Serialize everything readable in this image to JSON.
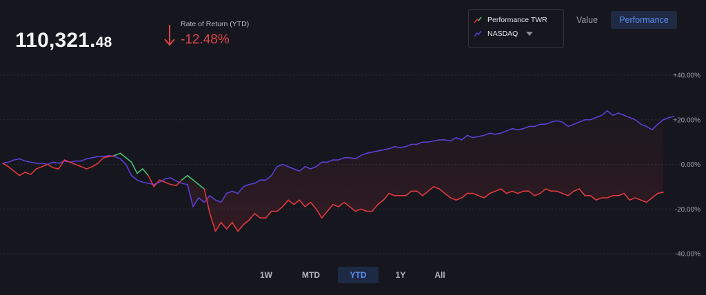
{
  "portfolio": {
    "value_main": "110,321.",
    "value_cents": "48"
  },
  "ror": {
    "label": "Rate of Return (YTD)",
    "value": "-12.48%",
    "direction": "down",
    "color": "#e0464a"
  },
  "legend": {
    "items": [
      {
        "label": "Performance TWR",
        "icon": "up-trend-icon"
      },
      {
        "label": "NASDAQ",
        "icon": "up-trend-icon",
        "dropdown": true
      }
    ]
  },
  "view_toggle": {
    "value_label": "Value",
    "performance_label": "Performance",
    "active": "Performance"
  },
  "ranges": {
    "items": [
      "1W",
      "MTD",
      "YTD",
      "1Y",
      "All"
    ],
    "active": "YTD"
  },
  "colors": {
    "performance": "#e0393e",
    "performance_up": "#3ec46d",
    "nasdaq": "#5b3fd6",
    "accent": "#5a8ff0",
    "background": "#16161e"
  },
  "chart_data": {
    "type": "line",
    "ylim": [
      -40,
      40
    ],
    "yticks": [
      40,
      20,
      0,
      -20,
      -40
    ],
    "ytick_labels": [
      "+40.00%",
      "+20.00%",
      "0.00%",
      "-20.00%",
      "-40.00%"
    ],
    "grid": true,
    "y_axis_position": "right",
    "series": [
      {
        "name": "Performance TWR",
        "color": "#e0393e",
        "values": [
          0.5,
          -1,
          -3,
          -5,
          -3.5,
          -4.5,
          -2,
          -1,
          0,
          -1.5,
          -2,
          2,
          1,
          0,
          -1,
          -2,
          -1,
          0.5,
          3,
          3.5,
          4,
          5,
          3,
          1,
          -4,
          -2,
          -5,
          -10,
          -7,
          -8,
          -9,
          -9.5,
          -7,
          -5,
          -7,
          -9,
          -11,
          -22,
          -30,
          -26,
          -29,
          -26,
          -30,
          -27,
          -25,
          -22,
          -24,
          -24,
          -21,
          -21,
          -19,
          -16,
          -18,
          -16,
          -19,
          -17,
          -20,
          -24,
          -21,
          -18,
          -19,
          -17,
          -19,
          -21,
          -20,
          -21,
          -21,
          -18,
          -16,
          -13,
          -14,
          -14,
          -14,
          -12,
          -12,
          -14,
          -12,
          -10,
          -11,
          -13,
          -15,
          -16,
          -15,
          -13,
          -13,
          -14,
          -15,
          -13,
          -12,
          -11,
          -13,
          -12,
          -13,
          -12,
          -12,
          -14,
          -13,
          -11,
          -12,
          -12,
          -13,
          -14,
          -12,
          -11,
          -14,
          -14,
          -16,
          -15,
          -15,
          -14,
          -14,
          -13,
          -16,
          -15,
          -16,
          -17,
          -15,
          -13,
          -12.5
        ]
      },
      {
        "name": "NASDAQ",
        "color": "#5b3fd6",
        "values": [
          0.5,
          1,
          2,
          2.5,
          1.5,
          1,
          0.5,
          0.5,
          0,
          1,
          0.5,
          1.5,
          1,
          1.5,
          1.5,
          2.5,
          3,
          3.5,
          3.5,
          4,
          3.5,
          2.5,
          0,
          -5,
          -7,
          -8,
          -8.5,
          -9,
          -8,
          -6.5,
          -6,
          -7.5,
          -8.5,
          -9,
          -19,
          -15,
          -17,
          -14,
          -16,
          -17,
          -13,
          -12,
          -13,
          -10,
          -9,
          -8.5,
          -7,
          -7,
          -5,
          -1,
          0,
          -1,
          -2,
          -3,
          -1,
          -2,
          -1,
          1,
          1,
          2,
          2,
          3,
          3,
          2.5,
          4,
          5,
          5.5,
          6,
          6.5,
          7,
          8,
          7.5,
          8,
          9,
          9,
          10,
          10,
          10.5,
          11,
          11,
          10.5,
          12,
          11,
          13,
          12,
          12.5,
          13,
          14,
          13.5,
          14,
          15,
          16,
          15.5,
          16,
          17,
          17,
          18,
          18,
          19,
          19.5,
          19,
          17,
          18,
          19,
          20,
          20,
          21,
          22,
          24,
          22,
          23,
          22,
          21,
          20,
          18,
          17,
          15.5,
          18,
          20,
          21,
          21.5
        ]
      }
    ]
  }
}
